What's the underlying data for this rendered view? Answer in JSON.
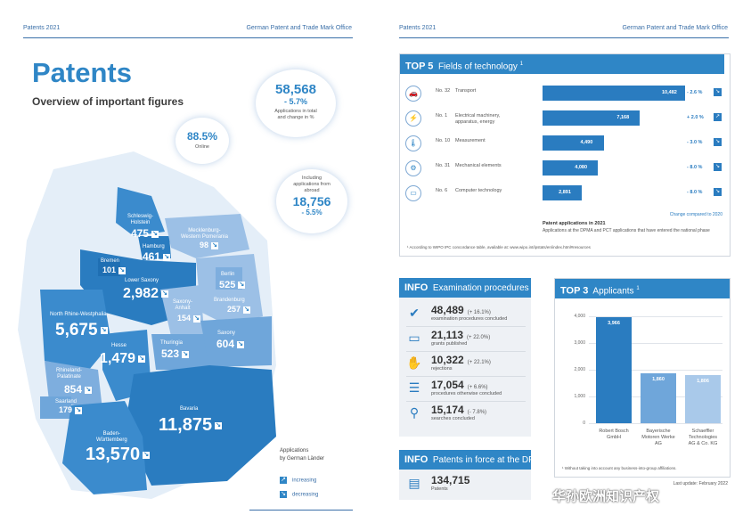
{
  "left_page": {
    "header_left": "Patents 2021",
    "header_right": "German Patent and Trade Mark Office",
    "title": "Patents",
    "subtitle": "Overview of important figures",
    "bubble_total": {
      "value": "58,568",
      "change": "- 5.7%",
      "text1": "Applications in total",
      "text2": "and change in %"
    },
    "bubble_online": {
      "value": "88.5%",
      "text": "Online"
    },
    "bubble_abroad": {
      "text1": "Including",
      "text2": "applications from",
      "text3": "abroad",
      "value": "18,756",
      "change": "- 5.5%"
    },
    "states": [
      {
        "label": "Schleswig-\nHolstein",
        "value": "475"
      },
      {
        "label": "Hamburg",
        "value": "461"
      },
      {
        "label": "Mecklenburg-\nWestern Pomerania",
        "value": "98"
      },
      {
        "label": "Bremen",
        "value": "101"
      },
      {
        "label": "Lower Saxony",
        "value": "2,982"
      },
      {
        "label": "Berlin",
        "value": "525"
      },
      {
        "label": "Brandenburg",
        "value": "257"
      },
      {
        "label": "Saxony-\nAnhalt",
        "value": "154"
      },
      {
        "label": "North Rhine-Westphalia",
        "value": "5,675"
      },
      {
        "label": "Hesse",
        "value": "1,479"
      },
      {
        "label": "Thuringia",
        "value": "523"
      },
      {
        "label": "Saxony",
        "value": "604"
      },
      {
        "label": "Rhineland-\nPalatinate",
        "value": "854"
      },
      {
        "label": "Saarland",
        "value": "179"
      },
      {
        "label": "Bavaria",
        "value": "11,875"
      },
      {
        "label": "Baden-\nWürttemberg",
        "value": "13,570"
      }
    ],
    "legend_title1": "Applications",
    "legend_title2": "by German Länder",
    "legend_increasing": "increasing",
    "legend_decreasing": "decreasing"
  },
  "right_page": {
    "header_left": "Patents 2021",
    "header_right": "German Patent and Trade Mark Office",
    "top5": {
      "title_bold": "TOP 5",
      "title_rest": "Fields of technology",
      "sup": "1",
      "rows": [
        {
          "rank": "No. 32",
          "name": "Transport",
          "value": 10482,
          "value_label": "10,482",
          "change": "- 2.6 %",
          "icon": "car-icon"
        },
        {
          "rank": "No. 1",
          "name": "Electrical machinery,\napparatus, energy",
          "value": 7168,
          "value_label": "7,168",
          "change": "+ 2.0 %",
          "icon": "plug-icon"
        },
        {
          "rank": "No. 10",
          "name": "Measurement",
          "value": 4490,
          "value_label": "4,490",
          "change": "- 3.0 %",
          "icon": "thermometer-icon"
        },
        {
          "rank": "No. 31",
          "name": "Mechanical elements",
          "value": 4080,
          "value_label": "4,080",
          "change": "- 8.0 %",
          "icon": "gears-icon"
        },
        {
          "rank": "No. 6",
          "name": "Computer technology",
          "value": 2891,
          "value_label": "2,891",
          "change": "- 8.0 %",
          "icon": "computer-icon"
        }
      ],
      "change_note": "Change compared to 2020",
      "chart_caption": "Patent applications in 2021",
      "chart_caption_sub": "Applications at the DPMA and PCT applications that have entered the national phase",
      "footnote": "¹ According to WIPO IPC concordance table, available at: www.wipo.int/ipstats/en/index.html#resources"
    },
    "info_exam": {
      "title_bold": "INFO",
      "title_rest": "Examination procedures",
      "rows": [
        {
          "value": "48,489",
          "change": "(+ 16.1%)",
          "label": "examination procedures concluded",
          "icon": "checkmark-icon"
        },
        {
          "value": "21,113",
          "change": "(+ 22.0%)",
          "label": "grants published",
          "icon": "monitor-icon"
        },
        {
          "value": "10,322",
          "change": "(+ 22.1%)",
          "label": "rejections",
          "icon": "hand-stop-icon"
        },
        {
          "value": "17,054",
          "change": "(+ 6.6%)",
          "label": "procedures otherwise concluded",
          "icon": "document-list-icon"
        },
        {
          "value": "15,174",
          "change": "(- 7.8%)",
          "label": "searches concluded",
          "icon": "magnifier-icon"
        }
      ]
    },
    "info_force": {
      "title_bold": "INFO",
      "title_rest": "Patents in force at the DPMA",
      "value": "134,715",
      "label": "Patents",
      "icon": "document-icon"
    },
    "top3": {
      "title_bold": "TOP 3",
      "title_rest": "Applicants",
      "sup": "1",
      "footnote": "¹ Without taking into account any business-into-group affiliations.",
      "last_update": "Last update: February 2022"
    },
    "watermark": "华孙欧洲知识产权"
  },
  "chart_data": [
    {
      "type": "bar",
      "title": "TOP 5 Fields of technology",
      "categories": [
        "Transport",
        "Electrical machinery, apparatus, energy",
        "Measurement",
        "Mechanical elements",
        "Computer technology"
      ],
      "values": [
        10482,
        7168,
        4490,
        4080,
        2891
      ],
      "orientation": "horizontal"
    },
    {
      "type": "bar",
      "title": "TOP 3 Applicants",
      "categories": [
        "Robert Bosch\nGmbH",
        "Bayerische\nMotoren Werke\nAG",
        "Schaeffler\nTechnologies\nAG & Co. KG"
      ],
      "values": [
        3966,
        1860,
        1806
      ],
      "value_labels": [
        "3,966",
        "1,860",
        "1,806"
      ],
      "yticks": [
        "0",
        "1,000",
        "2,000",
        "3,000",
        "4,000"
      ],
      "ylim": [
        0,
        4000
      ],
      "colors": [
        "#2a7cc0",
        "#6fa6da",
        "#a9c9ea"
      ],
      "grid": true
    }
  ],
  "colors": {
    "accent": "#2f86c6",
    "dark_blue": "#2a7cc0",
    "panel_bg": "#eef1f5"
  }
}
